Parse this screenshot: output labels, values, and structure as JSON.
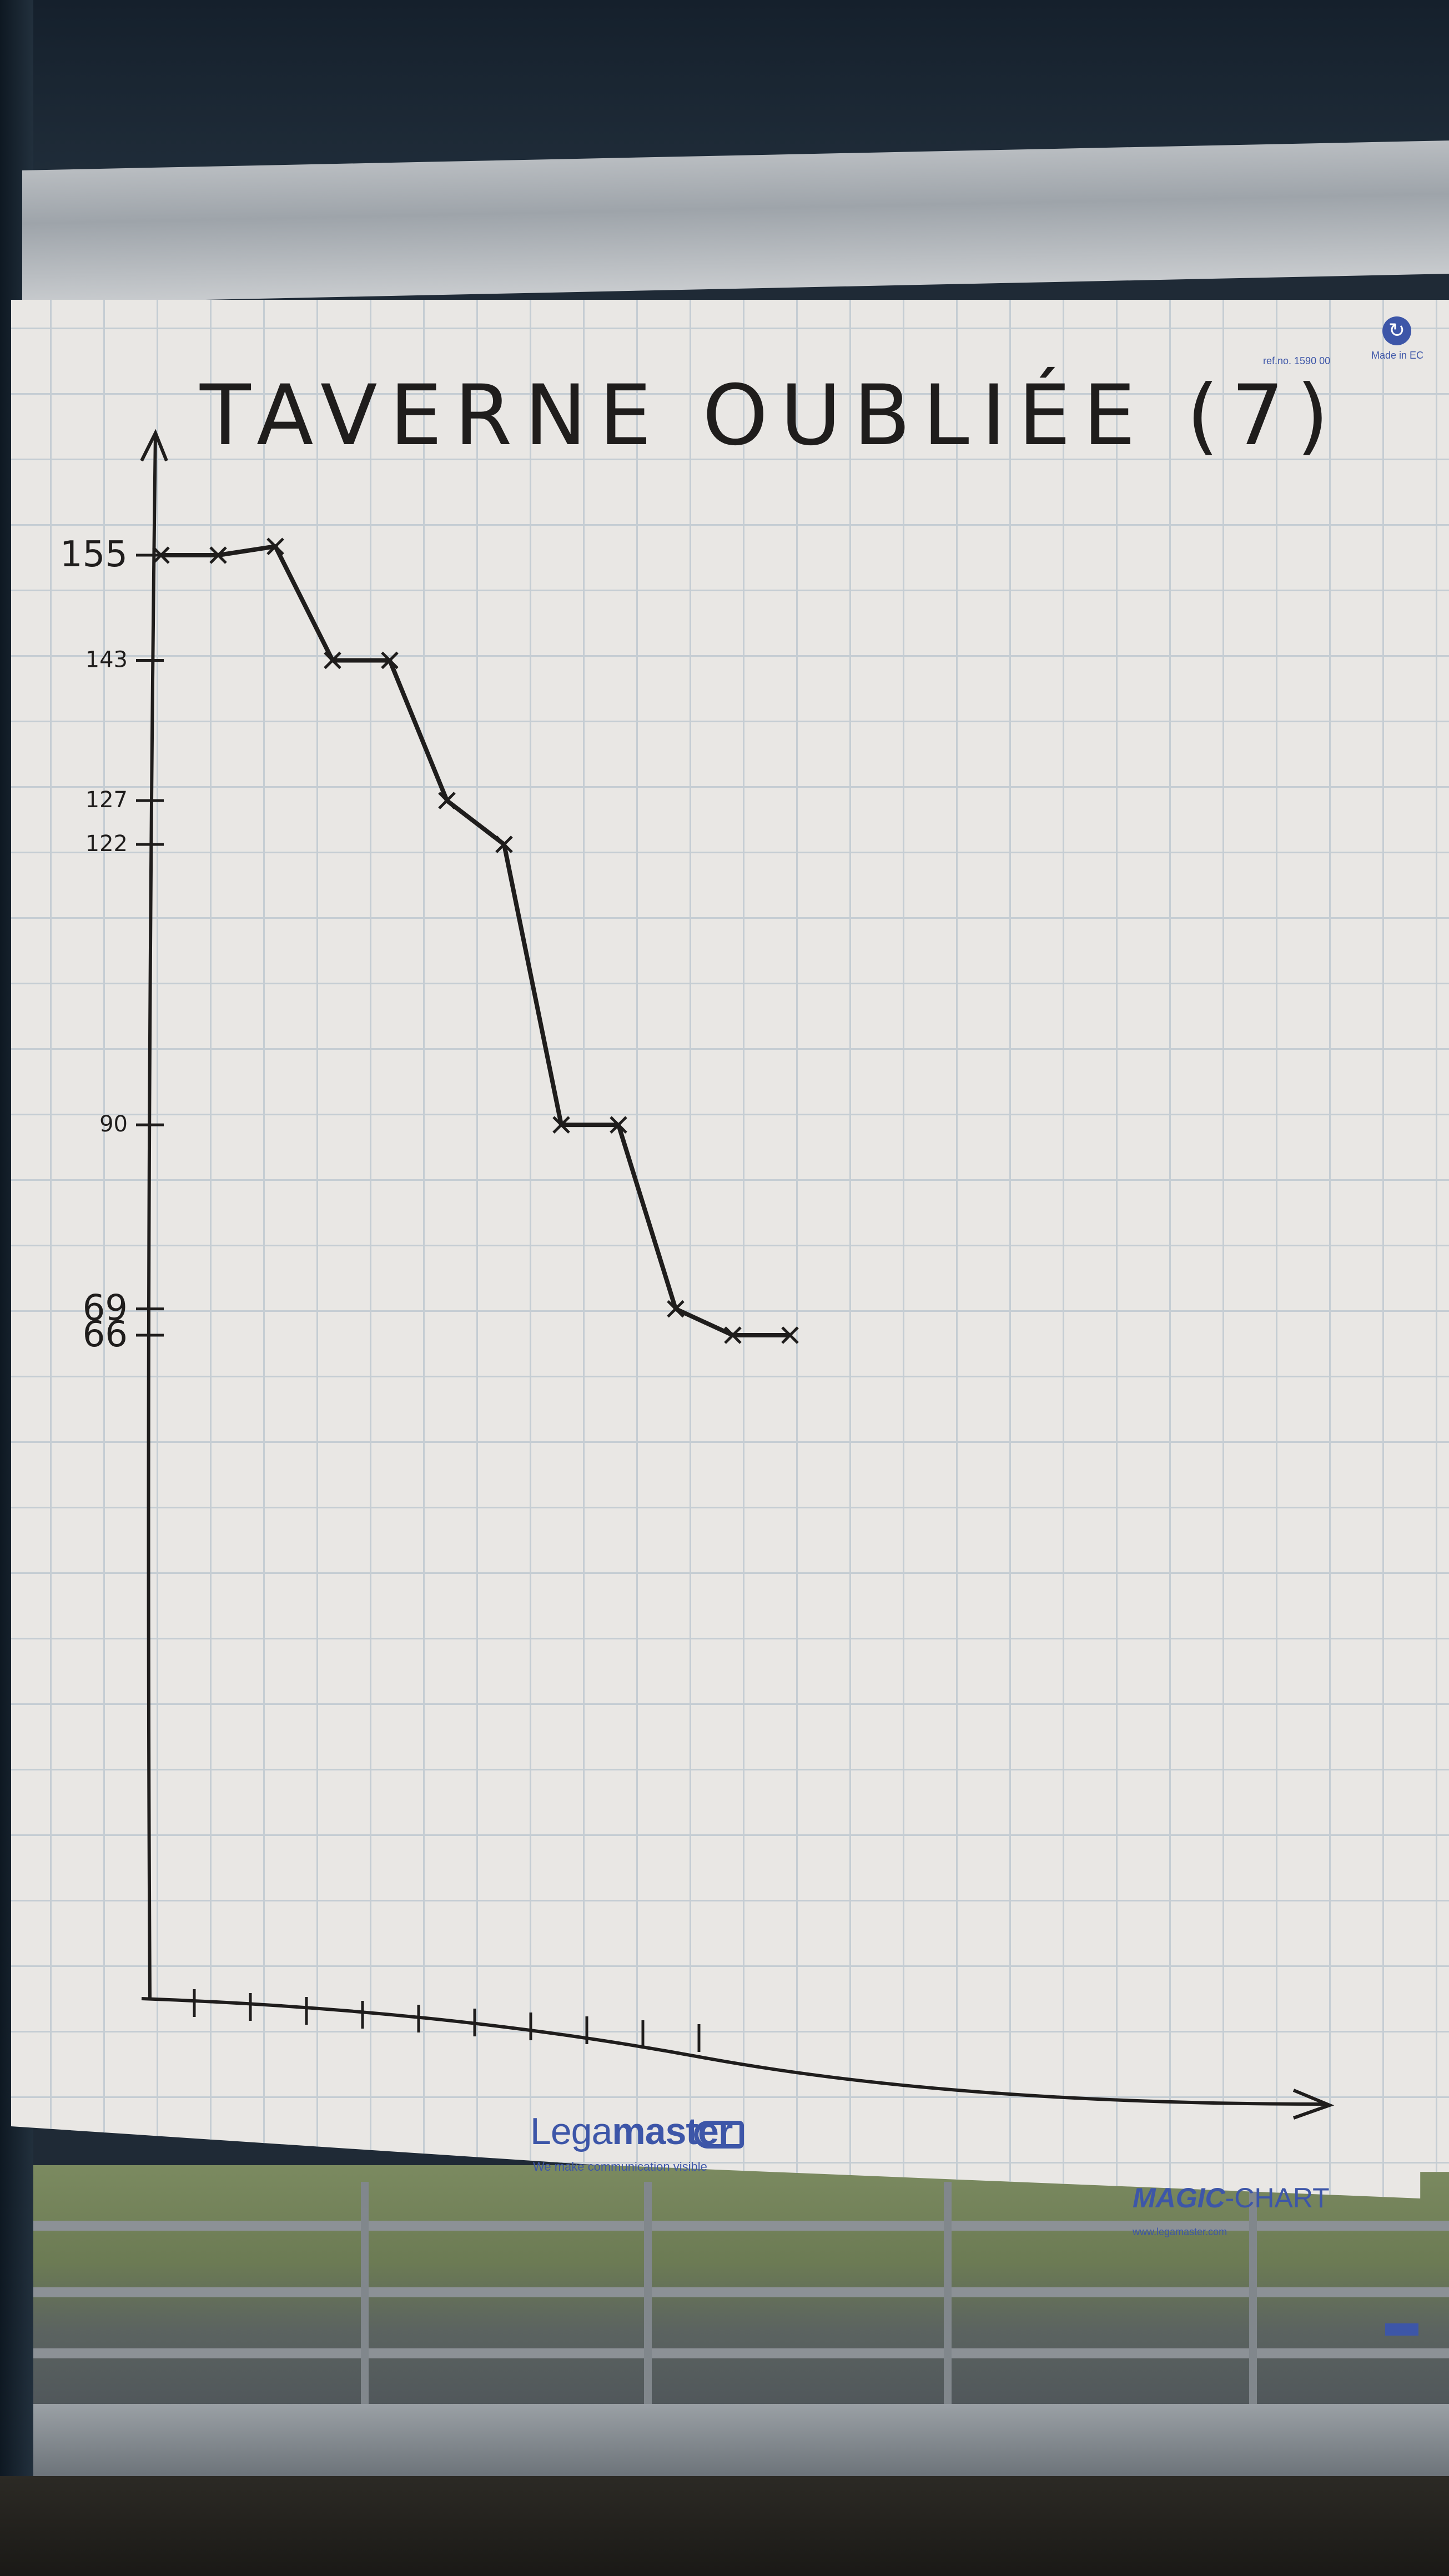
{
  "chart_data": {
    "type": "line",
    "title": "TAVERNE OUBLIÉE (7)",
    "xlabel": "",
    "ylabel": "",
    "x": [
      0,
      1,
      2,
      3,
      4,
      5,
      6,
      7,
      8,
      9,
      10,
      11
    ],
    "values": [
      155,
      155,
      156,
      143,
      143,
      127,
      122,
      90,
      90,
      69,
      66,
      66
    ],
    "yticks": [
      155,
      143,
      127,
      122,
      90,
      69,
      66
    ],
    "ylim": [
      0,
      160
    ],
    "grid": true,
    "legend": "none"
  },
  "branding": {
    "legamaster_a": "Lega",
    "legamaster_b": "master",
    "tagline": "We make communication visible",
    "magic_a": "MAGIC",
    "magic_b": "-CHART",
    "url": "www.legamaster.com",
    "ref": "ref.no. 1590 00",
    "made_in": "Made in EC"
  },
  "colors": {
    "ink": "#1f1d1c",
    "brand_blue": "#3d56a8",
    "paper": "#e9e7e4",
    "grid": "#c5cdd3"
  }
}
